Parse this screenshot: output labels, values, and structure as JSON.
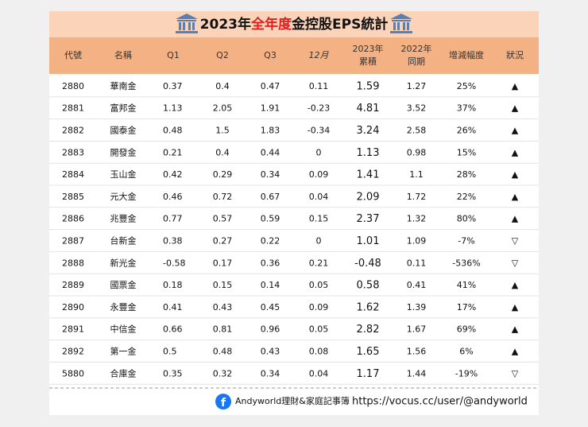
{
  "title": {
    "parts": [
      "2023年",
      "全年度",
      "金控股EPS統計"
    ]
  },
  "table": {
    "header": [
      "代號",
      "名稱",
      "Q1",
      "Q2",
      "Q3",
      "12月",
      [
        "2023年",
        "累積"
      ],
      [
        "2022年",
        "同期"
      ],
      "增減幅度",
      "狀況"
    ],
    "rows": [
      [
        "2880",
        "華南金",
        "0.37",
        "0.4",
        "0.47",
        "0.11",
        "1.59",
        "1.27",
        "25%",
        "▲"
      ],
      [
        "2881",
        "富邦金",
        "1.13",
        "2.05",
        "1.91",
        "-0.23",
        "4.81",
        "3.52",
        "37%",
        "▲"
      ],
      [
        "2882",
        "國泰金",
        "0.48",
        "1.5",
        "1.83",
        "-0.34",
        "3.24",
        "2.58",
        "26%",
        "▲"
      ],
      [
        "2883",
        "開發金",
        "0.21",
        "0.4",
        "0.44",
        "0",
        "1.13",
        "0.98",
        "15%",
        "▲"
      ],
      [
        "2884",
        "玉山金",
        "0.42",
        "0.29",
        "0.34",
        "0.09",
        "1.41",
        "1.1",
        "28%",
        "▲"
      ],
      [
        "2885",
        "元大金",
        "0.46",
        "0.72",
        "0.67",
        "0.04",
        "2.09",
        "1.72",
        "22%",
        "▲"
      ],
      [
        "2886",
        "兆豐金",
        "0.77",
        "0.57",
        "0.59",
        "0.15",
        "2.37",
        "1.32",
        "80%",
        "▲"
      ],
      [
        "2887",
        "台新金",
        "0.38",
        "0.27",
        "0.22",
        "0",
        "1.01",
        "1.09",
        "-7%",
        "▽"
      ],
      [
        "2888",
        "新光金",
        "-0.58",
        "0.17",
        "0.36",
        "0.21",
        "-0.48",
        "0.11",
        "-536%",
        "▽"
      ],
      [
        "2889",
        "國票金",
        "0.18",
        "0.15",
        "0.14",
        "0.05",
        "0.58",
        "0.41",
        "41%",
        "▲"
      ],
      [
        "2890",
        "永豐金",
        "0.41",
        "0.43",
        "0.45",
        "0.09",
        "1.62",
        "1.39",
        "17%",
        "▲"
      ],
      [
        "2891",
        "中信金",
        "0.66",
        "0.81",
        "0.96",
        "0.05",
        "2.82",
        "1.67",
        "69%",
        "▲"
      ],
      [
        "2892",
        "第一金",
        "0.5",
        "0.48",
        "0.43",
        "0.08",
        "1.65",
        "1.56",
        "6%",
        "▲"
      ],
      [
        "5880",
        "合庫金",
        "0.35",
        "0.32",
        "0.34",
        "0.04",
        "1.17",
        "1.44",
        "-19%",
        "▽"
      ]
    ]
  },
  "footer": {
    "brand": "Andyworld理財&家庭記事簿",
    "url": "https://vocus.cc/user/@andyworld"
  }
}
